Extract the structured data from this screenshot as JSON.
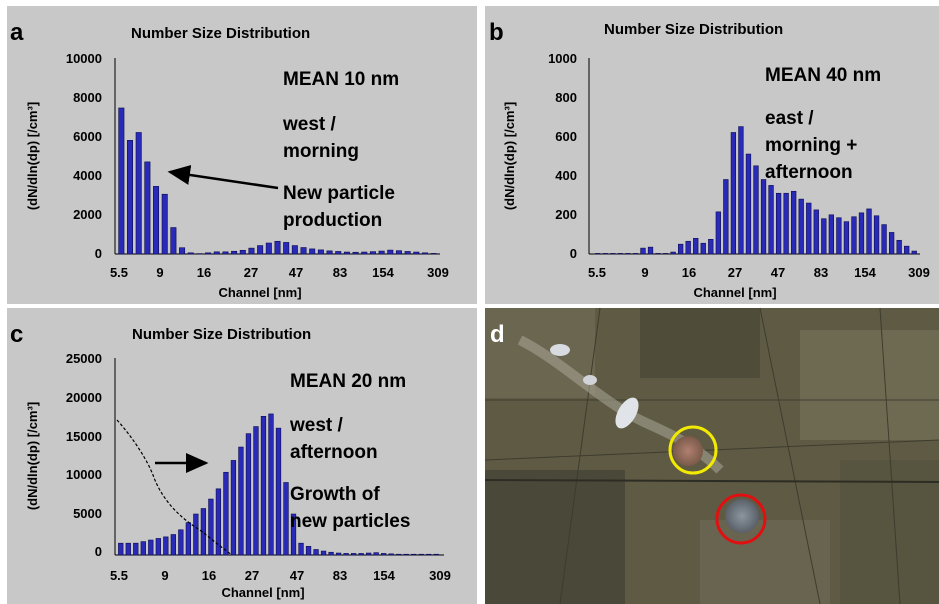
{
  "chart_data": [
    {
      "panel": "a",
      "type": "bar",
      "title": "Number Size Distribution",
      "xlabel": "Channel [nm]",
      "ylabel": "(dN/dln(dp) [/cm³]",
      "ylim": [
        0,
        10000
      ],
      "yticks": [
        "0",
        "2000",
        "4000",
        "6000",
        "8000",
        "10000"
      ],
      "xticks": [
        "5.5",
        "9",
        "16",
        "27",
        "47",
        "83",
        "154",
        "309"
      ],
      "annotations": [
        "MEAN 10 nm",
        "west /",
        "morning",
        "New particle",
        "production"
      ],
      "values": [
        7450,
        5800,
        6200,
        4700,
        3450,
        3050,
        1350,
        320,
        60,
        20,
        60,
        110,
        110,
        140,
        190,
        300,
        430,
        560,
        650,
        590,
        430,
        330,
        260,
        210,
        160,
        130,
        100,
        90,
        100,
        120,
        150,
        200,
        170,
        130,
        100,
        60,
        30
      ]
    },
    {
      "panel": "b",
      "type": "bar",
      "title": "Number Size Distribution",
      "xlabel": "Channel [nm]",
      "ylabel": "(dN/dln(dp) [/cm³]",
      "ylim": [
        0,
        1000
      ],
      "yticks": [
        "0",
        "200",
        "400",
        "600",
        "800",
        "1000"
      ],
      "xticks": [
        "5.5",
        "9",
        "16",
        "27",
        "47",
        "83",
        "154",
        "309"
      ],
      "annotations": [
        "MEAN 40 nm",
        "east /",
        "morning +",
        "afternoon"
      ],
      "values": [
        3,
        3,
        3,
        3,
        3,
        3,
        30,
        35,
        3,
        3,
        10,
        50,
        65,
        80,
        55,
        75,
        215,
        380,
        620,
        650,
        510,
        450,
        380,
        350,
        310,
        310,
        320,
        280,
        260,
        225,
        180,
        200,
        185,
        165,
        190,
        210,
        230,
        195,
        150,
        110,
        70,
        40,
        15
      ]
    },
    {
      "panel": "c",
      "type": "bar",
      "title": "Number Size Distribution",
      "xlabel": "Channel [nm]",
      "ylabel": "(dN/dln(dp) [/cm³]",
      "ylim": [
        0,
        25000
      ],
      "yticks": [
        "0",
        "5000",
        "10000",
        "15000",
        "20000",
        "25000"
      ],
      "xticks": [
        "5.5",
        "9",
        "16",
        "27",
        "47",
        "83",
        "154",
        "309"
      ],
      "annotations": [
        "MEAN 20 nm",
        "west /",
        "afternoon",
        "Growth of",
        "new particles"
      ],
      "values": [
        1500,
        1500,
        1500,
        1700,
        1900,
        2100,
        2300,
        2600,
        3200,
        4100,
        5200,
        5900,
        7100,
        8400,
        10500,
        12000,
        13700,
        15400,
        16300,
        17600,
        17900,
        16100,
        9200,
        5200,
        1500,
        1100,
        700,
        500,
        350,
        250,
        200,
        200,
        200,
        250,
        300,
        200,
        150,
        100,
        100,
        100,
        100,
        100,
        100
      ]
    }
  ],
  "panel_d": {
    "label": "d",
    "image": "satellite-view",
    "marker_colors": [
      "#f2ea00",
      "#e01010"
    ]
  },
  "colors": {
    "bar": "#2a2ab8",
    "panel_bg": "#c8c8c8",
    "letter_d": "#ffffff"
  }
}
